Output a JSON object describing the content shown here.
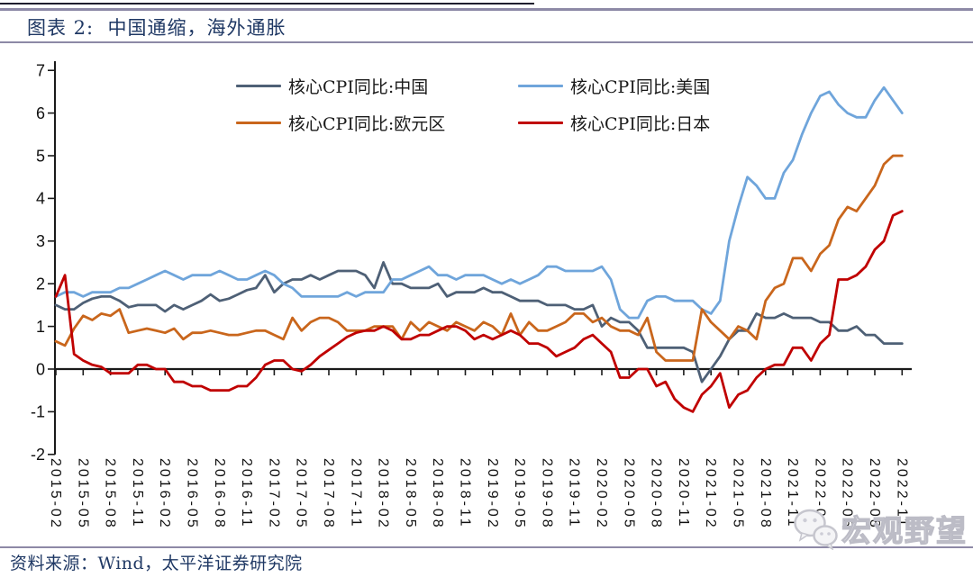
{
  "style": {
    "rule_color": "#8d89a6",
    "title_color": "#1f3864",
    "axis_color": "#1a1a1a",
    "watermark_color": "#bcbcc6"
  },
  "footer": {
    "source": "资料来源：Wind，太平洋证券研究院"
  },
  "watermark": {
    "icon": "wechat-icon",
    "text": "宏观野望"
  },
  "chart_data": {
    "type": "line",
    "title": "图表 2:  中国通缩，海外通胀",
    "xlabel": "",
    "ylabel": "",
    "ylim": [
      -2,
      7
    ],
    "y_ticks": [
      -2,
      -1,
      0,
      1,
      2,
      3,
      4,
      5,
      6,
      7
    ],
    "grid": false,
    "legend_position": "top-center",
    "x_tick_step": 3,
    "x": [
      "2015-02",
      "2015-03",
      "2015-04",
      "2015-05",
      "2015-06",
      "2015-07",
      "2015-08",
      "2015-09",
      "2015-10",
      "2015-11",
      "2015-12",
      "2016-01",
      "2016-02",
      "2016-03",
      "2016-04",
      "2016-05",
      "2016-06",
      "2016-07",
      "2016-08",
      "2016-09",
      "2016-10",
      "2016-11",
      "2016-12",
      "2017-01",
      "2017-02",
      "2017-03",
      "2017-04",
      "2017-05",
      "2017-06",
      "2017-07",
      "2017-08",
      "2017-09",
      "2017-10",
      "2017-11",
      "2017-12",
      "2018-01",
      "2018-02",
      "2018-03",
      "2018-04",
      "2018-05",
      "2018-06",
      "2018-07",
      "2018-08",
      "2018-09",
      "2018-10",
      "2018-11",
      "2018-12",
      "2019-01",
      "2019-02",
      "2019-03",
      "2019-04",
      "2019-05",
      "2019-06",
      "2019-07",
      "2019-08",
      "2019-09",
      "2019-10",
      "2019-11",
      "2019-12",
      "2020-01",
      "2020-02",
      "2020-03",
      "2020-04",
      "2020-05",
      "2020-06",
      "2020-07",
      "2020-08",
      "2020-09",
      "2020-10",
      "2020-11",
      "2020-12",
      "2021-01",
      "2021-02",
      "2021-03",
      "2021-04",
      "2021-05",
      "2021-06",
      "2021-07",
      "2021-08",
      "2021-09",
      "2021-10",
      "2021-11",
      "2021-12",
      "2022-01",
      "2022-02",
      "2022-03",
      "2022-04",
      "2022-05",
      "2022-06",
      "2022-07",
      "2022-08",
      "2022-09",
      "2022-10",
      "2022-11"
    ],
    "series": [
      {
        "key": "china",
        "name": "核心CPI同比:中国",
        "color": "#4e6076",
        "values": [
          1.5,
          1.4,
          1.4,
          1.55,
          1.65,
          1.7,
          1.7,
          1.6,
          1.45,
          1.5,
          1.5,
          1.5,
          1.35,
          1.5,
          1.4,
          1.5,
          1.6,
          1.75,
          1.6,
          1.65,
          1.75,
          1.85,
          1.9,
          2.2,
          1.8,
          2.0,
          2.1,
          2.1,
          2.2,
          2.1,
          2.2,
          2.3,
          2.3,
          2.3,
          2.2,
          1.9,
          2.5,
          2.0,
          2.0,
          1.9,
          1.9,
          1.9,
          2.0,
          1.7,
          1.8,
          1.8,
          1.8,
          1.9,
          1.8,
          1.8,
          1.7,
          1.6,
          1.6,
          1.6,
          1.5,
          1.5,
          1.5,
          1.4,
          1.4,
          1.5,
          1.0,
          1.2,
          1.1,
          1.1,
          0.9,
          0.5,
          0.5,
          0.5,
          0.5,
          0.5,
          0.4,
          -0.3,
          0.0,
          0.3,
          0.7,
          0.9,
          0.9,
          1.3,
          1.2,
          1.2,
          1.3,
          1.2,
          1.2,
          1.2,
          1.1,
          1.1,
          0.9,
          0.9,
          1.0,
          0.8,
          0.8,
          0.6,
          0.6,
          0.6
        ]
      },
      {
        "key": "us",
        "name": "核心CPI同比:美国",
        "color": "#6fa5db",
        "values": [
          1.7,
          1.8,
          1.8,
          1.7,
          1.8,
          1.8,
          1.8,
          1.9,
          1.9,
          2.0,
          2.1,
          2.2,
          2.3,
          2.2,
          2.1,
          2.2,
          2.2,
          2.2,
          2.3,
          2.2,
          2.1,
          2.1,
          2.2,
          2.3,
          2.2,
          2.0,
          1.9,
          1.7,
          1.7,
          1.7,
          1.7,
          1.7,
          1.8,
          1.7,
          1.8,
          1.8,
          1.8,
          2.1,
          2.1,
          2.2,
          2.3,
          2.4,
          2.2,
          2.2,
          2.1,
          2.2,
          2.2,
          2.2,
          2.1,
          2.0,
          2.1,
          2.0,
          2.1,
          2.2,
          2.4,
          2.4,
          2.3,
          2.3,
          2.3,
          2.3,
          2.4,
          2.1,
          1.4,
          1.2,
          1.2,
          1.6,
          1.7,
          1.7,
          1.6,
          1.6,
          1.6,
          1.4,
          1.3,
          1.6,
          3.0,
          3.8,
          4.5,
          4.3,
          4.0,
          4.0,
          4.6,
          4.9,
          5.5,
          6.0,
          6.4,
          6.5,
          6.2,
          6.0,
          5.9,
          5.9,
          6.3,
          6.6,
          6.3,
          6.0
        ]
      },
      {
        "key": "eurozone",
        "name": "核心CPI同比:欧元区",
        "color": "#c9661c",
        "values": [
          0.65,
          0.55,
          0.95,
          1.25,
          1.15,
          1.3,
          1.25,
          1.4,
          0.85,
          0.9,
          0.95,
          0.9,
          0.85,
          0.95,
          0.7,
          0.85,
          0.85,
          0.9,
          0.85,
          0.8,
          0.8,
          0.85,
          0.9,
          0.9,
          0.8,
          0.7,
          1.2,
          0.9,
          1.1,
          1.2,
          1.2,
          1.1,
          0.9,
          0.9,
          0.9,
          1.0,
          1.0,
          1.0,
          0.7,
          1.1,
          0.9,
          1.1,
          1.0,
          0.9,
          1.1,
          1.0,
          0.9,
          1.1,
          1.0,
          0.8,
          1.3,
          0.8,
          1.1,
          0.9,
          0.9,
          1.0,
          1.1,
          1.3,
          1.3,
          1.1,
          1.2,
          1.0,
          0.9,
          0.9,
          0.8,
          1.2,
          0.4,
          0.2,
          0.2,
          0.2,
          0.2,
          1.4,
          1.1,
          0.9,
          0.7,
          1.0,
          0.9,
          0.7,
          1.6,
          1.9,
          2.0,
          2.6,
          2.6,
          2.3,
          2.7,
          2.9,
          3.5,
          3.8,
          3.7,
          4.0,
          4.3,
          4.8,
          5.0,
          5.0
        ]
      },
      {
        "key": "japan",
        "name": "核心CPI同比:日本",
        "color": "#c00000",
        "values": [
          1.7,
          2.2,
          0.35,
          0.2,
          0.1,
          0.05,
          -0.1,
          -0.1,
          -0.1,
          0.1,
          0.1,
          0.0,
          0.0,
          -0.3,
          -0.3,
          -0.4,
          -0.4,
          -0.5,
          -0.5,
          -0.5,
          -0.4,
          -0.4,
          -0.2,
          0.1,
          0.2,
          0.2,
          0.0,
          -0.05,
          0.1,
          0.3,
          0.45,
          0.6,
          0.75,
          0.85,
          0.9,
          0.9,
          1.0,
          0.9,
          0.7,
          0.7,
          0.8,
          0.8,
          0.9,
          1.0,
          1.0,
          0.9,
          0.7,
          0.8,
          0.7,
          0.8,
          0.9,
          0.8,
          0.6,
          0.6,
          0.5,
          0.3,
          0.4,
          0.5,
          0.7,
          0.8,
          0.6,
          0.4,
          -0.2,
          -0.2,
          0.0,
          0.0,
          -0.4,
          -0.3,
          -0.7,
          -0.9,
          -1.0,
          -0.6,
          -0.4,
          -0.1,
          -0.9,
          -0.6,
          -0.5,
          -0.2,
          0.0,
          0.1,
          0.1,
          0.5,
          0.5,
          0.2,
          0.6,
          0.8,
          2.1,
          2.1,
          2.2,
          2.4,
          2.8,
          3.0,
          3.6,
          3.7
        ]
      }
    ]
  }
}
